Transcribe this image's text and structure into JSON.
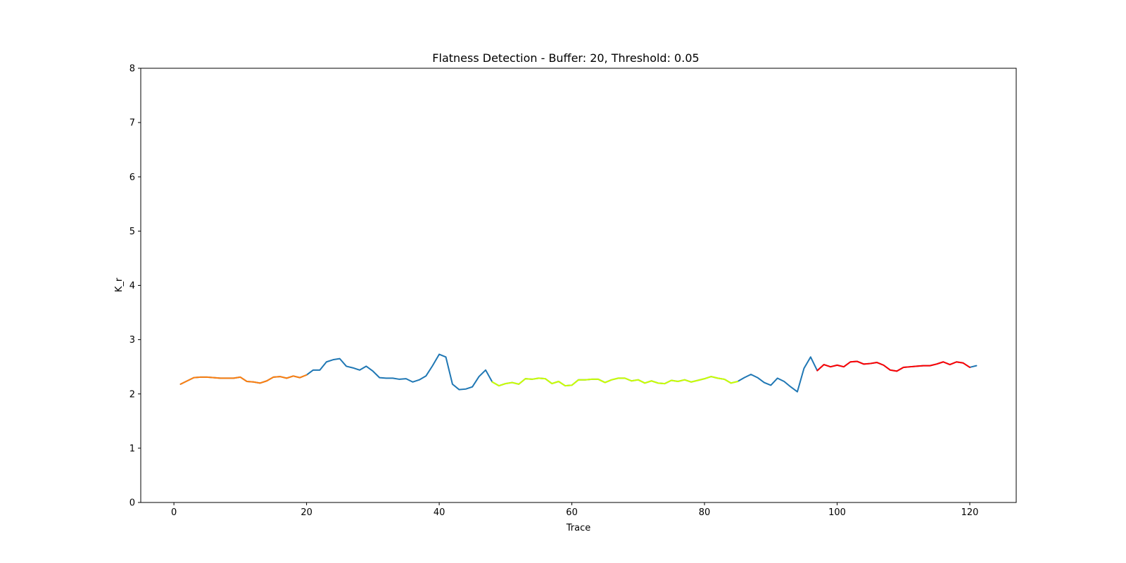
{
  "chart_data": {
    "type": "line",
    "title": "Flatness Detection - Buffer: 20, Threshold: 0.05",
    "xlabel": "Trace",
    "ylabel": "K_r",
    "xlim": [
      -5,
      127
    ],
    "ylim": [
      0,
      8
    ],
    "xticks": [
      0,
      20,
      40,
      60,
      80,
      100,
      120
    ],
    "yticks": [
      0,
      1,
      2,
      3,
      4,
      5,
      6,
      7,
      8
    ],
    "grid": false,
    "legend": "none",
    "series": [
      {
        "color": "#1f77b4",
        "x": [
          1,
          2,
          3,
          4,
          5,
          6,
          7,
          8,
          9,
          10,
          11,
          12,
          13,
          14,
          15,
          16,
          17,
          18,
          19,
          20,
          21,
          22,
          23,
          24,
          25,
          26,
          27,
          28,
          29,
          30,
          31,
          32,
          33,
          34,
          35,
          36,
          37,
          38,
          39,
          40,
          41,
          42,
          43,
          44,
          45,
          46,
          47,
          48,
          49,
          50,
          51,
          52,
          53,
          54,
          55,
          56,
          57,
          58,
          59,
          60,
          61,
          62,
          63,
          64,
          65,
          66,
          67,
          68,
          69,
          70,
          71,
          72,
          73,
          74,
          75,
          76,
          77,
          78,
          79,
          80,
          81,
          82,
          83,
          84,
          85,
          86,
          87,
          88,
          89,
          90,
          91,
          92,
          93,
          94,
          95,
          96,
          97,
          98,
          99,
          100,
          101,
          102,
          103,
          104,
          105,
          106,
          107,
          108,
          109,
          110,
          111,
          112,
          113,
          114,
          115,
          116,
          117,
          118,
          119,
          120,
          121
        ],
        "y": [
          2.18,
          2.24,
          2.3,
          2.31,
          2.31,
          2.3,
          2.29,
          2.29,
          2.29,
          2.31,
          2.23,
          2.22,
          2.2,
          2.24,
          2.31,
          2.32,
          2.29,
          2.33,
          2.3,
          2.35,
          2.44,
          2.44,
          2.59,
          2.63,
          2.65,
          2.51,
          2.48,
          2.44,
          2.51,
          2.42,
          2.3,
          2.29,
          2.29,
          2.27,
          2.28,
          2.22,
          2.26,
          2.33,
          2.52,
          2.73,
          2.68,
          2.18,
          2.08,
          2.09,
          2.13,
          2.32,
          2.44,
          2.22,
          2.15,
          2.19,
          2.21,
          2.18,
          2.28,
          2.27,
          2.29,
          2.28,
          2.19,
          2.23,
          2.15,
          2.16,
          2.26,
          2.26,
          2.27,
          2.27,
          2.21,
          2.26,
          2.29,
          2.29,
          2.24,
          2.26,
          2.2,
          2.24,
          2.2,
          2.19,
          2.25,
          2.23,
          2.26,
          2.22,
          2.25,
          2.28,
          2.32,
          2.29,
          2.27,
          2.2,
          2.23,
          2.3,
          2.36,
          2.3,
          2.21,
          2.16,
          2.29,
          2.23,
          2.13,
          2.04,
          2.47,
          2.68,
          2.43,
          2.54,
          2.5,
          2.53,
          2.5,
          2.59,
          2.6,
          2.55,
          2.56,
          2.58,
          2.53,
          2.44,
          2.42,
          2.49,
          2.5,
          2.51,
          2.52,
          2.52,
          2.55,
          2.59,
          2.54,
          2.59,
          2.57,
          2.49,
          2.52
        ]
      },
      {
        "color": "#ff7f0e",
        "x": [
          1,
          2,
          3,
          4,
          5,
          6,
          7,
          8,
          9,
          10,
          11,
          12,
          13,
          14,
          15,
          16,
          17,
          18,
          19,
          20
        ],
        "y": [
          2.18,
          2.24,
          2.3,
          2.31,
          2.31,
          2.3,
          2.29,
          2.29,
          2.29,
          2.31,
          2.23,
          2.22,
          2.2,
          2.24,
          2.31,
          2.32,
          2.29,
          2.33,
          2.3,
          2.35
        ]
      },
      {
        "color": "#ccff00",
        "x": [
          48,
          49,
          50,
          51,
          52,
          53,
          54,
          55,
          56,
          57,
          58,
          59,
          60,
          61,
          62,
          63,
          64,
          65,
          66,
          67,
          68,
          69,
          70,
          71,
          72,
          73,
          74,
          75,
          76,
          77,
          78,
          79,
          80,
          81,
          82,
          83,
          84,
          85
        ],
        "y": [
          2.22,
          2.15,
          2.19,
          2.21,
          2.18,
          2.28,
          2.27,
          2.29,
          2.28,
          2.19,
          2.23,
          2.15,
          2.16,
          2.26,
          2.26,
          2.27,
          2.27,
          2.21,
          2.26,
          2.29,
          2.29,
          2.24,
          2.26,
          2.2,
          2.24,
          2.2,
          2.19,
          2.25,
          2.23,
          2.26,
          2.22,
          2.25,
          2.28,
          2.32,
          2.29,
          2.27,
          2.2,
          2.23
        ]
      },
      {
        "color": "#ff0000",
        "x": [
          97,
          98,
          99,
          100,
          101,
          102,
          103,
          104,
          105,
          106,
          107,
          108,
          109,
          110,
          111,
          112,
          113,
          114,
          115,
          116,
          117,
          118,
          119,
          120
        ],
        "y": [
          2.43,
          2.54,
          2.5,
          2.53,
          2.5,
          2.59,
          2.6,
          2.55,
          2.56,
          2.58,
          2.53,
          2.44,
          2.42,
          2.49,
          2.5,
          2.51,
          2.52,
          2.52,
          2.55,
          2.59,
          2.54,
          2.59,
          2.57,
          2.49
        ]
      }
    ]
  }
}
